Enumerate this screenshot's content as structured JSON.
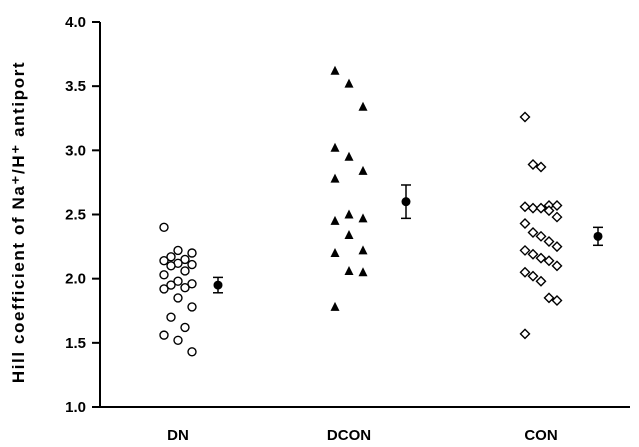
{
  "chart_data": {
    "type": "scatter",
    "ylabel": "Hill coefficient of Na⁺/H⁺ antiport",
    "ylim": [
      1.0,
      4.0
    ],
    "yticks": [
      "1.0",
      "1.5",
      "2.0",
      "2.5",
      "3.0",
      "3.5",
      "4.0"
    ],
    "categories": [
      "DN",
      "DCON",
      "CON"
    ],
    "grid": false,
    "series": [
      {
        "category": "DN",
        "marker": "open-circle",
        "values": [
          2.4,
          2.22,
          2.2,
          2.17,
          2.15,
          2.14,
          2.12,
          2.11,
          2.1,
          2.06,
          2.03,
          1.98,
          1.96,
          1.95,
          1.93,
          1.92,
          1.85,
          1.78,
          1.7,
          1.62,
          1.56,
          1.52,
          1.43
        ],
        "mean": 1.95,
        "error": 0.06
      },
      {
        "category": "DCON",
        "marker": "filled-triangle",
        "values": [
          3.62,
          3.52,
          3.34,
          3.02,
          2.95,
          2.84,
          2.78,
          2.5,
          2.47,
          2.45,
          2.34,
          2.22,
          2.2,
          2.06,
          2.05,
          1.78
        ],
        "mean": 2.6,
        "error": 0.13
      },
      {
        "category": "CON",
        "marker": "open-diamond",
        "values": [
          3.26,
          2.89,
          2.87,
          2.57,
          2.57,
          2.56,
          2.55,
          2.55,
          2.53,
          2.48,
          2.43,
          2.36,
          2.33,
          2.29,
          2.25,
          2.22,
          2.19,
          2.16,
          2.14,
          2.1,
          2.05,
          2.02,
          1.98,
          1.85,
          1.83,
          1.57
        ],
        "mean": 2.33,
        "error": 0.07
      }
    ]
  }
}
